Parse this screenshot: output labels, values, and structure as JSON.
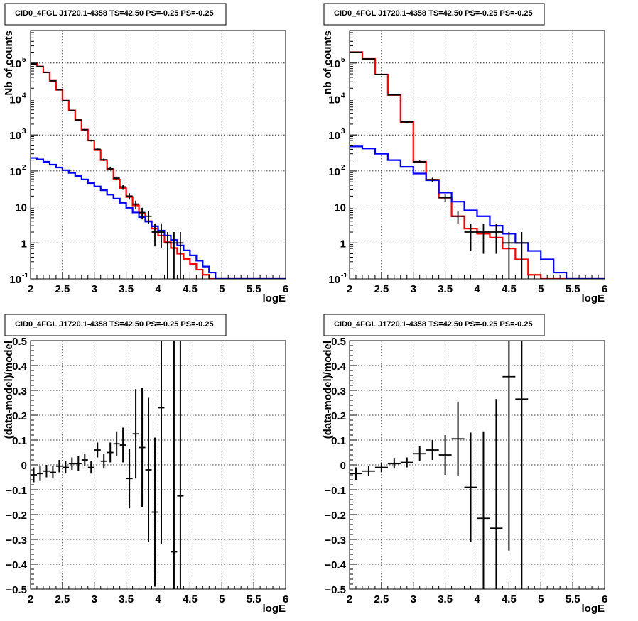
{
  "chart_data": [
    {
      "type": "line",
      "title": "CID0_4FGL J1720.1-4358 TS=42.50 PS=-0.25 PS=-0.25",
      "xlabel": "logE",
      "ylabel": "Nb of counts",
      "log_y": true,
      "xlim": [
        2,
        6
      ],
      "ylim": [
        0.1,
        800000
      ],
      "grid": true,
      "xticks": [
        "2",
        "2.5",
        "3",
        "3.5",
        "4",
        "4.5",
        "5",
        "5.5",
        "6"
      ],
      "yticks": [
        {
          "value": 0.1,
          "label": "10",
          "exp": "-1"
        },
        {
          "value": 1,
          "label": "1",
          "exp": ""
        },
        {
          "value": 10,
          "label": "10",
          "exp": ""
        },
        {
          "value": 100,
          "label": "10",
          "exp": "2"
        },
        {
          "value": 1000,
          "label": "10",
          "exp": "3"
        },
        {
          "value": 10000,
          "label": "10",
          "exp": "4"
        },
        {
          "value": 100000,
          "label": "10",
          "exp": "5"
        }
      ],
      "bin_edges": [
        2,
        2.1,
        2.2,
        2.3,
        2.4,
        2.5,
        2.6,
        2.7,
        2.8,
        2.9,
        3,
        3.1,
        3.2,
        3.3,
        3.4,
        3.5,
        3.6,
        3.7,
        3.8,
        3.9,
        4,
        4.1,
        4.2,
        4.3,
        4.4,
        4.5,
        4.6,
        4.7,
        4.8,
        4.9,
        5,
        5.1,
        5.2,
        5.3,
        5.4,
        5.5,
        5.6,
        5.7,
        5.8,
        5.9,
        6
      ],
      "series": [
        {
          "color": "#ff0000",
          "kind": "step",
          "values": [
            95000,
            80000,
            55000,
            32000,
            18000,
            9000,
            4800,
            2600,
            1400,
            700,
            380,
            200,
            110,
            58,
            33,
            19,
            11,
            6.5,
            4,
            2.5,
            1.6,
            1.05,
            0.72,
            0.5,
            0.36,
            0.26,
            0.18,
            0.13,
            0.1,
            0.1,
            0.1,
            0.1,
            0.1,
            0.1,
            0.1,
            0.1,
            0.1,
            0.1,
            0.1,
            0.1
          ]
        },
        {
          "color": "#0000ff",
          "kind": "step",
          "values": [
            230,
            210,
            180,
            150,
            125,
            105,
            88,
            72,
            58,
            46,
            37,
            29,
            22,
            17,
            13,
            9.5,
            7,
            5.2,
            3.9,
            2.9,
            2.2,
            1.6,
            1.2,
            0.85,
            0.62,
            0.45,
            0.32,
            0.22,
            0.15,
            0.1,
            0.1,
            0.1,
            0.1,
            0.1,
            0.1,
            0.1,
            0.1,
            0.1,
            0.1,
            0.1
          ]
        },
        {
          "color": "#000000",
          "kind": "points",
          "points": [
            [
              2.05,
              95000,
              92000,
              98000
            ],
            [
              2.15,
              80000,
              78000,
              82000
            ],
            [
              2.25,
              55000,
              53500,
              56500
            ],
            [
              2.35,
              32000,
              31000,
              33000
            ],
            [
              2.45,
              18000,
              17400,
              18600
            ],
            [
              2.55,
              9000,
              8700,
              9300
            ],
            [
              2.65,
              4800,
              4620,
              4980
            ],
            [
              2.75,
              2600,
              2480,
              2720
            ],
            [
              2.85,
              1400,
              1330,
              1470
            ],
            [
              2.95,
              700,
              660,
              740
            ],
            [
              3.05,
              400,
              380,
              420
            ],
            [
              3.15,
              205,
              190,
              220
            ],
            [
              3.25,
              115,
              104,
              126
            ],
            [
              3.35,
              63,
              56,
              70
            ],
            [
              3.45,
              36,
              30,
              42
            ],
            [
              3.55,
              20,
              16,
              24
            ],
            [
              3.65,
              12,
              9,
              15
            ],
            [
              3.75,
              7,
              4.5,
              9.5
            ],
            [
              3.85,
              5.5,
              3.3,
              7.7
            ],
            [
              3.95,
              2,
              0.8,
              3.3
            ],
            [
              4.05,
              2,
              0.7,
              3.5
            ],
            [
              4.15,
              1,
              0.1,
              2
            ],
            [
              4.25,
              1,
              0.1,
              2
            ],
            [
              4.35,
              1,
              0.1,
              2
            ]
          ]
        }
      ]
    },
    {
      "type": "line",
      "title": "CID0_4FGL J1720.1-4358 TS=42.50 PS=-0.25 PS=-0.25",
      "xlabel": "logE",
      "ylabel": "nb of counts",
      "log_y": true,
      "xlim": [
        2,
        6
      ],
      "ylim": [
        0.1,
        800000
      ],
      "grid": true,
      "xticks": [
        "2",
        "2.5",
        "3",
        "3.5",
        "4",
        "4.5",
        "5",
        "5.5",
        "6"
      ],
      "yticks": [
        {
          "value": 0.1,
          "label": "10",
          "exp": "-1"
        },
        {
          "value": 1,
          "label": "1",
          "exp": ""
        },
        {
          "value": 10,
          "label": "10",
          "exp": ""
        },
        {
          "value": 100,
          "label": "10",
          "exp": "2"
        },
        {
          "value": 1000,
          "label": "10",
          "exp": "3"
        },
        {
          "value": 10000,
          "label": "10",
          "exp": "4"
        },
        {
          "value": 100000,
          "label": "10",
          "exp": "5"
        }
      ],
      "bin_edges": [
        2,
        2.2,
        2.4,
        2.6,
        2.8,
        3,
        3.2,
        3.4,
        3.6,
        3.8,
        4,
        4.2,
        4.4,
        4.6,
        4.8,
        5,
        5.2,
        5.4,
        5.6,
        5.8,
        6
      ],
      "series": [
        {
          "color": "#ff0000",
          "kind": "step",
          "values": [
            200000,
            130000,
            48000,
            13000,
            2300,
            180,
            57,
            18,
            5.5,
            2.5,
            1.8,
            1.4,
            0.7,
            0.35,
            0.13,
            0.1,
            0.1,
            0.1,
            0.1,
            0.1
          ]
        },
        {
          "color": "#0000ff",
          "kind": "step",
          "values": [
            480,
            420,
            300,
            200,
            130,
            85,
            55,
            25,
            14,
            8,
            5.5,
            3,
            1.8,
            1.0,
            0.6,
            0.35,
            0.15,
            0.1,
            0.1,
            0.1
          ]
        },
        {
          "color": "#000000",
          "kind": "points",
          "points": [
            [
              2.1,
              200000,
              198000,
              202000
            ],
            [
              2.3,
              130000,
              128500,
              131500
            ],
            [
              2.5,
              48000,
              47000,
              49000
            ],
            [
              2.7,
              13000,
              12600,
              13400
            ],
            [
              2.9,
              2300,
              2180,
              2420
            ],
            [
              3.1,
              180,
              166,
              194
            ],
            [
              3.3,
              57,
              49,
              65
            ],
            [
              3.5,
              18,
              14,
              22
            ],
            [
              3.7,
              5.5,
              3.3,
              7.7
            ],
            [
              3.9,
              2,
              0.6,
              3.4
            ],
            [
              4.1,
              2,
              0.5,
              3.4
            ],
            [
              4.3,
              2,
              0.5,
              3.4
            ],
            [
              4.5,
              1,
              0.1,
              2
            ],
            [
              4.7,
              1,
              0.1,
              2
            ]
          ]
        }
      ]
    },
    {
      "type": "scatter",
      "title": "CID0_4FGL J1720.1-4358 TS=42.50 PS=-0.25 PS=-0.25",
      "xlabel": "logE",
      "ylabel": "(data-model)/model",
      "log_y": false,
      "xlim": [
        2,
        6
      ],
      "ylim": [
        -0.5,
        0.5
      ],
      "grid": true,
      "xticks": [
        "2",
        "2.5",
        "3",
        "3.5",
        "4",
        "4.5",
        "5",
        "5.5",
        "6"
      ],
      "yticks": [
        {
          "value": -0.5,
          "label": "−0.5"
        },
        {
          "value": -0.4,
          "label": "−0.4"
        },
        {
          "value": -0.3,
          "label": "−0.3"
        },
        {
          "value": -0.2,
          "label": "−0.2"
        },
        {
          "value": -0.1,
          "label": "−0.1"
        },
        {
          "value": 0,
          "label": "0"
        },
        {
          "value": 0.1,
          "label": "0.1"
        },
        {
          "value": 0.2,
          "label": "0.2"
        },
        {
          "value": 0.3,
          "label": "0.3"
        },
        {
          "value": 0.4,
          "label": "0.4"
        },
        {
          "value": 0.5,
          "label": "0.5"
        }
      ],
      "halfwidth": 0.05,
      "series": [
        {
          "color": "#000000",
          "kind": "errorbars",
          "points": [
            [
              2.05,
              -0.04,
              0.03
            ],
            [
              2.15,
              -0.035,
              0.03
            ],
            [
              2.25,
              -0.025,
              0.025
            ],
            [
              2.35,
              -0.03,
              0.025
            ],
            [
              2.45,
              -0.005,
              0.025
            ],
            [
              2.55,
              -0.01,
              0.025
            ],
            [
              2.65,
              0.005,
              0.025
            ],
            [
              2.75,
              0.005,
              0.03
            ],
            [
              2.85,
              0.02,
              0.025
            ],
            [
              2.95,
              -0.01,
              0.025
            ],
            [
              3.05,
              0.06,
              0.03
            ],
            [
              3.15,
              0.015,
              0.03
            ],
            [
              3.25,
              0.05,
              0.04
            ],
            [
              3.35,
              0.085,
              0.05
            ],
            [
              3.45,
              0.08,
              0.07
            ],
            [
              3.55,
              -0.055,
              0.12
            ],
            [
              3.65,
              0.125,
              0.18
            ],
            [
              3.75,
              0.07,
              0.24
            ],
            [
              3.85,
              -0.02,
              0.29
            ],
            [
              3.95,
              -0.19,
              0.3
            ],
            [
              4.05,
              0.23,
              0.55
            ],
            [
              4.25,
              -0.35,
              0.85
            ],
            [
              4.35,
              -0.125,
              0.85
            ]
          ]
        }
      ]
    },
    {
      "type": "scatter",
      "title": "CID0_4FGL J1720.1-4358 TS=42.50 PS=-0.25 PS=-0.25",
      "xlabel": "logE",
      "ylabel": "(data-model)/model",
      "log_y": false,
      "xlim": [
        2,
        6
      ],
      "ylim": [
        -0.5,
        0.5
      ],
      "grid": true,
      "xticks": [
        "2",
        "2.5",
        "3",
        "3.5",
        "4",
        "4.5",
        "5",
        "5.5",
        "6"
      ],
      "yticks": [
        {
          "value": -0.5,
          "label": "−0.5"
        },
        {
          "value": -0.4,
          "label": "−0.4"
        },
        {
          "value": -0.3,
          "label": "−0.3"
        },
        {
          "value": -0.2,
          "label": "−0.2"
        },
        {
          "value": -0.1,
          "label": "−0.1"
        },
        {
          "value": 0,
          "label": "0"
        },
        {
          "value": 0.1,
          "label": "0.1"
        },
        {
          "value": 0.2,
          "label": "0.2"
        },
        {
          "value": 0.3,
          "label": "0.3"
        },
        {
          "value": 0.4,
          "label": "0.4"
        },
        {
          "value": 0.5,
          "label": "0.5"
        }
      ],
      "halfwidth": 0.1,
      "series": [
        {
          "color": "#000000",
          "kind": "errorbars",
          "points": [
            [
              2.1,
              -0.035,
              0.025
            ],
            [
              2.3,
              -0.025,
              0.02
            ],
            [
              2.5,
              -0.01,
              0.02
            ],
            [
              2.7,
              0.005,
              0.02
            ],
            [
              2.9,
              0.01,
              0.02
            ],
            [
              3.1,
              0.045,
              0.03
            ],
            [
              3.3,
              0.06,
              0.04
            ],
            [
              3.5,
              0.04,
              0.08
            ],
            [
              3.7,
              0.105,
              0.15
            ],
            [
              3.9,
              -0.09,
              0.22
            ],
            [
              4.1,
              -0.215,
              0.35
            ],
            [
              4.3,
              -0.255,
              0.52
            ],
            [
              4.5,
              0.355,
              0.7
            ],
            [
              4.7,
              0.265,
              0.8
            ]
          ]
        }
      ]
    }
  ]
}
